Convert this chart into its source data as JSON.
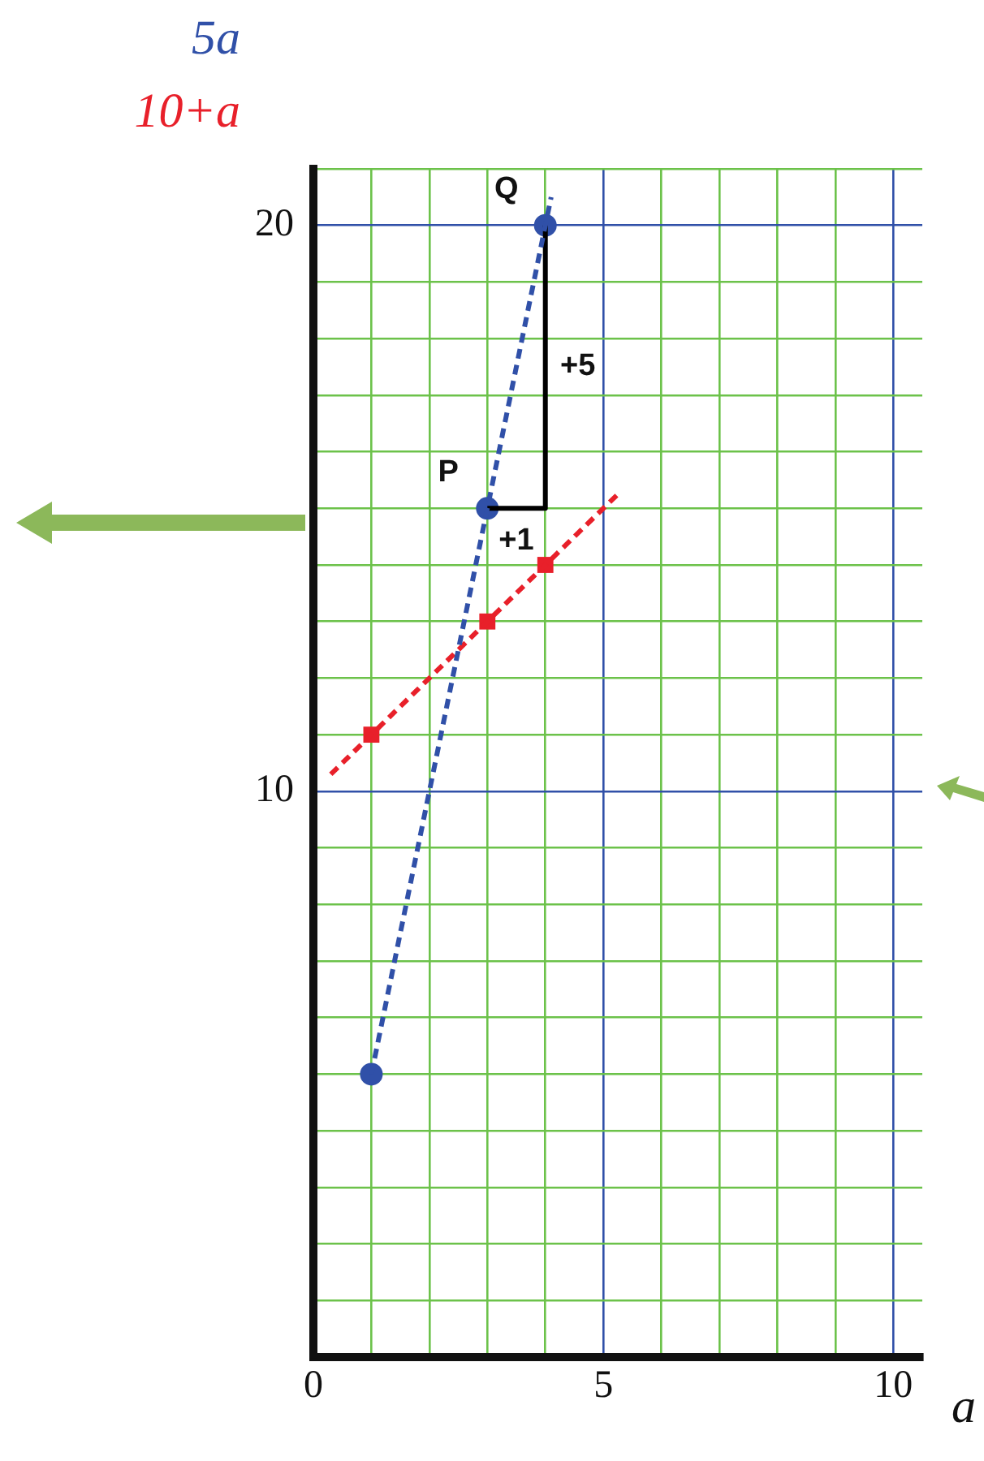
{
  "chart_data": {
    "type": "line",
    "xlabel": "a",
    "xlim": [
      0,
      10.5
    ],
    "ylim": [
      0,
      21
    ],
    "xticks": [
      0,
      {
        "value": 1,
        "label": null
      },
      {
        "value": 2,
        "label": null
      },
      {
        "value": 3,
        "label": null
      },
      {
        "value": 4,
        "label": null
      },
      5,
      {
        "value": 6,
        "label": null
      },
      {
        "value": 7,
        "label": null
      },
      {
        "value": 8,
        "label": null
      },
      {
        "value": 9,
        "label": null
      },
      10
    ],
    "yticks": [
      {
        "value": 0,
        "label": null
      },
      {
        "value": 1,
        "label": null
      },
      {
        "value": 2,
        "label": null
      },
      {
        "value": 3,
        "label": null
      },
      {
        "value": 4,
        "label": null
      },
      {
        "value": 5,
        "label": null
      },
      {
        "value": 6,
        "label": null
      },
      {
        "value": 7,
        "label": null
      },
      {
        "value": 8,
        "label": null
      },
      {
        "value": 9,
        "label": null
      },
      10,
      {
        "value": 11,
        "label": null
      },
      {
        "value": 12,
        "label": null
      },
      {
        "value": 13,
        "label": null
      },
      {
        "value": 14,
        "label": null
      },
      {
        "value": 15,
        "label": null
      },
      {
        "value": 16,
        "label": null
      },
      {
        "value": 17,
        "label": null
      },
      {
        "value": 18,
        "label": null
      },
      {
        "value": 19,
        "label": null
      },
      20,
      {
        "value": 21,
        "label": null
      }
    ],
    "grid": true,
    "legend": false,
    "series": [
      {
        "name": "5a",
        "color": "#3050a8",
        "line_style": "dashed",
        "marker": "none",
        "x": [
          1,
          4.1
        ],
        "values": [
          5,
          20.5
        ]
      },
      {
        "name": "10+a",
        "color": "#e8202a",
        "line_style": "dashed",
        "marker": "none",
        "x": [
          0.3,
          5.3
        ],
        "values": [
          10.3,
          15.3
        ]
      },
      {
        "color": "#000000",
        "line_style": "solid",
        "marker": "none",
        "x": [
          3,
          4,
          4
        ],
        "values": [
          15,
          15,
          20
        ]
      },
      {
        "type": "scatter",
        "color": "#3050a8",
        "marker": "circle",
        "x": [
          1,
          3,
          4
        ],
        "values": [
          5,
          15,
          20
        ]
      },
      {
        "type": "scatter",
        "color": "#e8202a",
        "marker": "square",
        "x": [
          1,
          3,
          4
        ],
        "values": [
          11,
          13,
          14
        ]
      }
    ],
    "annotations": [
      {
        "text": "P",
        "x": 3,
        "y": 15
      },
      {
        "text": "Q",
        "x": 4,
        "y": 20
      },
      {
        "text": "+1",
        "x": 3.5,
        "y": 15
      },
      {
        "text": "+5",
        "x": 4,
        "y": 17.5
      }
    ]
  }
}
